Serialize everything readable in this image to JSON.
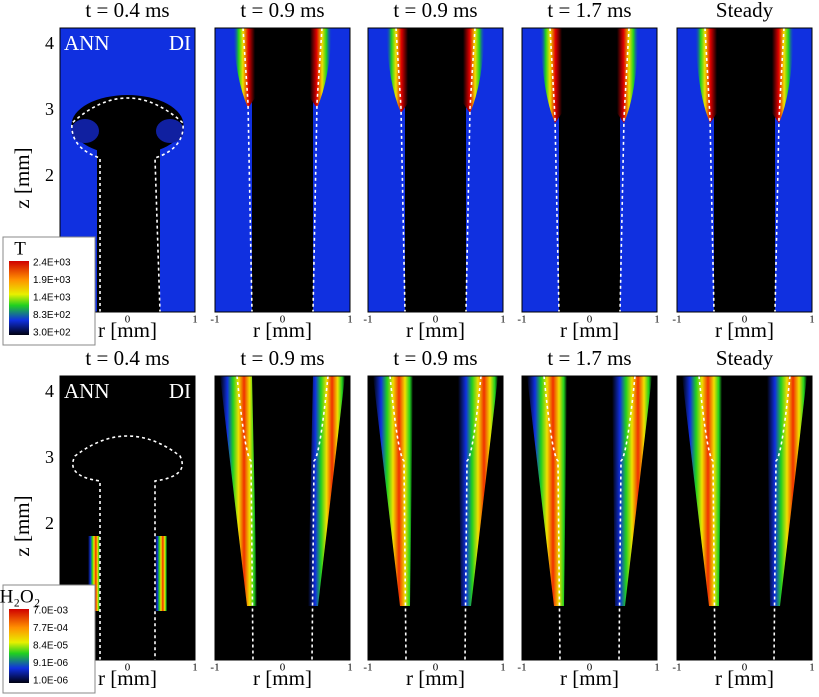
{
  "rows": [
    {
      "titles": [
        "t = 0.4 ms",
        "t = 0.9 ms",
        "t = 0.9 ms",
        "t = 1.7 ms",
        "Steady"
      ],
      "corner_labels": [
        "ANN",
        "DI"
      ],
      "y_axis_label": "z [mm]",
      "y_ticks": [
        "4",
        "3",
        "2"
      ],
      "x_axis_label": "r [mm]",
      "x_ticks": [
        "-1",
        "0",
        "1"
      ],
      "colorbar": {
        "title": "T",
        "ticks": [
          "2.4E+03",
          "1.9E+03",
          "1.4E+03",
          "8.3E+02",
          "3.0E+02"
        ]
      }
    },
    {
      "titles": [
        "t = 0.4 ms",
        "t = 0.9 ms",
        "t = 0.9 ms",
        "t = 1.7 ms",
        "Steady"
      ],
      "corner_labels": [
        "ANN",
        "DI"
      ],
      "y_axis_label": "z [mm]",
      "y_ticks": [
        "4",
        "3",
        "2"
      ],
      "x_axis_label": "r [mm]",
      "x_ticks": [
        "-1",
        "0",
        "1"
      ],
      "colorbar": {
        "title": "H₂O₂",
        "ticks": [
          "7.0E-03",
          "7.7E-04",
          "8.4E-05",
          "9.1E-06",
          "1.0E-06"
        ]
      }
    }
  ]
}
